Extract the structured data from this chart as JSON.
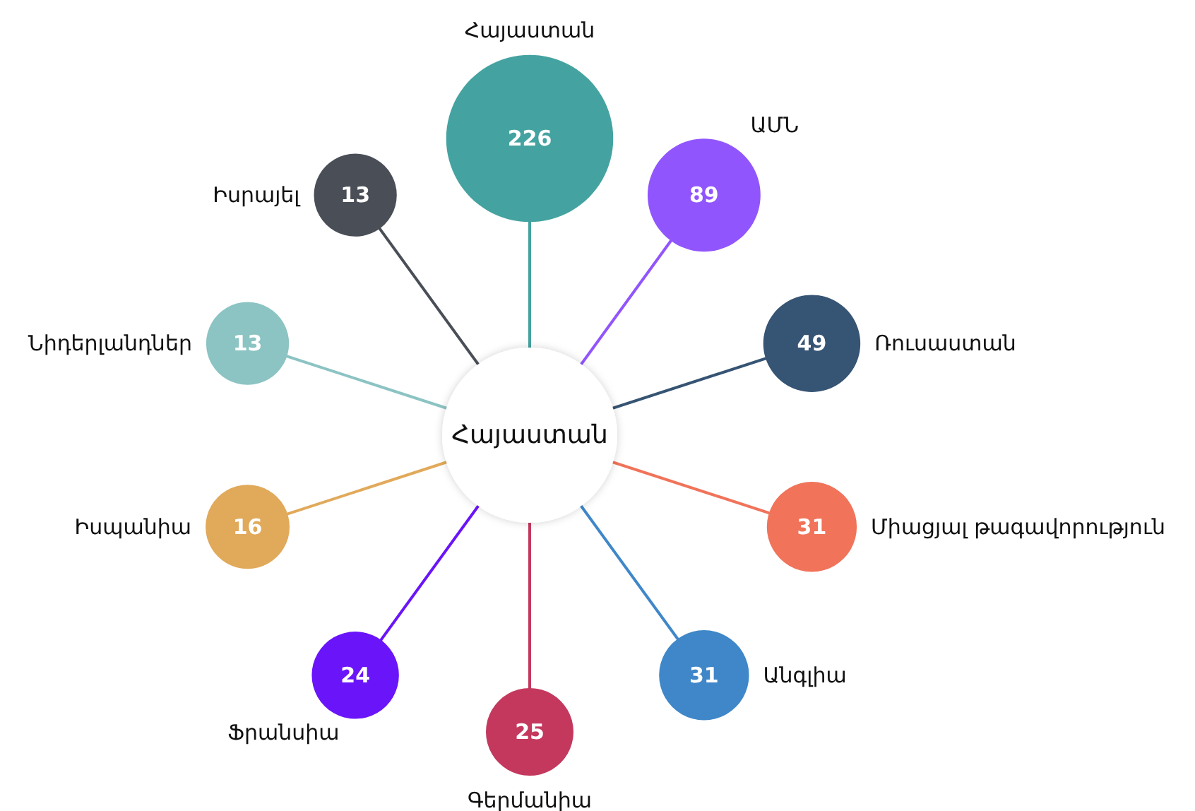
{
  "chart_data": {
    "type": "other",
    "title": "Հայաստան",
    "categories": [
      "Հայաստան",
      "ԱՄՆ",
      "Ռուսաստան",
      "Միացյալ թագավորություն",
      "Անգլիա",
      "Գերմանիա",
      "Ֆրանսիա",
      "Իսպանիա",
      "Նիդերլանդներ",
      "Իսրայել"
    ],
    "values": [
      226,
      89,
      49,
      31,
      31,
      25,
      24,
      16,
      13,
      13
    ],
    "colors": [
      "#44a3a0",
      "#9155fd",
      "#365473",
      "#f0735a",
      "#3f87c8",
      "#c4385e",
      "#6a14f9",
      "#e1a95a",
      "#8cc3c3",
      "#4a4e57"
    ],
    "data_labels": true
  }
}
